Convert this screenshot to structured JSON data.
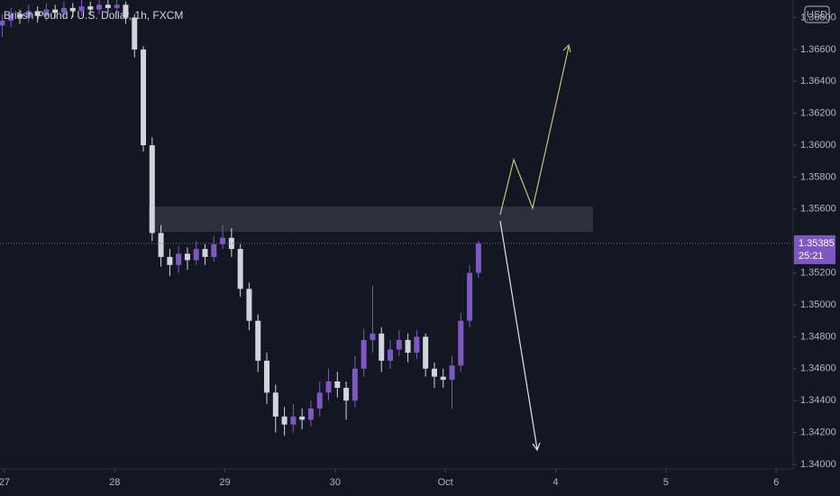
{
  "chart_data": {
    "type": "candlestick",
    "title": "British Pound / U.S. Dollar, 1h, FXCM",
    "currency": "USD",
    "countdown": "25:21",
    "last_price": {
      "value": 1.35385,
      "label": "1.35385"
    },
    "up_color": "#7e57c2",
    "down_color": "#d1d4dc",
    "xlim": [
      -0.04,
      7.2
    ],
    "xticks": [
      {
        "value": 0,
        "label": "27"
      },
      {
        "value": 1,
        "label": "28"
      },
      {
        "value": 2,
        "label": "29"
      },
      {
        "value": 3,
        "label": "30"
      },
      {
        "value": 4,
        "label": "Oct"
      },
      {
        "value": 5,
        "label": "4"
      },
      {
        "value": 6,
        "label": "5"
      },
      {
        "value": 7,
        "label": "6"
      }
    ],
    "ylim": [
      1.34,
      1.3691
    ],
    "yticks": [
      {
        "value": 1.34,
        "label": "1.34000"
      },
      {
        "value": 1.342,
        "label": "1.34200"
      },
      {
        "value": 1.344,
        "label": "1.34400"
      },
      {
        "value": 1.346,
        "label": "1.34600"
      },
      {
        "value": 1.348,
        "label": "1.34800"
      },
      {
        "value": 1.35,
        "label": "1.35000"
      },
      {
        "value": 1.352,
        "label": "1.35200"
      },
      {
        "value": 1.356,
        "label": "1.35600"
      },
      {
        "value": 1.358,
        "label": "1.35800"
      },
      {
        "value": 1.36,
        "label": "1.36000"
      },
      {
        "value": 1.362,
        "label": "1.36200"
      },
      {
        "value": 1.364,
        "label": "1.36400"
      },
      {
        "value": 1.366,
        "label": "1.36600"
      },
      {
        "value": 1.368,
        "label": "1.36800"
      }
    ],
    "x": [
      -0.02,
      0.06,
      0.14,
      0.22,
      0.3,
      0.38,
      0.46,
      0.54,
      0.62,
      0.7,
      0.78,
      0.86,
      0.94,
      1.02,
      1.1,
      1.18,
      1.26,
      1.34,
      1.42,
      1.5,
      1.58,
      1.66,
      1.74,
      1.82,
      1.9,
      1.98,
      2.06,
      2.14,
      2.22,
      2.3,
      2.38,
      2.46,
      2.54,
      2.62,
      2.7,
      2.78,
      2.86,
      2.94,
      3.02,
      3.1,
      3.18,
      3.26,
      3.34,
      3.42,
      3.5,
      3.58,
      3.66,
      3.74,
      3.82,
      3.9,
      3.98,
      4.06,
      4.14,
      4.22,
      4.3
    ],
    "candles": [
      [
        1.3675,
        1.3682,
        1.3668,
        1.3678
      ],
      [
        1.3678,
        1.3686,
        1.3674,
        1.3682
      ],
      [
        1.3682,
        1.3685,
        1.3676,
        1.368
      ],
      [
        1.368,
        1.3688,
        1.3677,
        1.3684
      ],
      [
        1.3684,
        1.3687,
        1.3677,
        1.3681
      ],
      [
        1.3681,
        1.3689,
        1.3678,
        1.3685
      ],
      [
        1.3685,
        1.3688,
        1.368,
        1.3683
      ],
      [
        1.3683,
        1.369,
        1.368,
        1.3686
      ],
      [
        1.3686,
        1.3689,
        1.368,
        1.3684
      ],
      [
        1.3684,
        1.3691,
        1.3681,
        1.3687
      ],
      [
        1.3687,
        1.369,
        1.3682,
        1.3685
      ],
      [
        1.3685,
        1.3692,
        1.3682,
        1.3688
      ],
      [
        1.3688,
        1.3691,
        1.3683,
        1.3686
      ],
      [
        1.3686,
        1.3692,
        1.3683,
        1.3688
      ],
      [
        1.3688,
        1.369,
        1.3676,
        1.368
      ],
      [
        1.368,
        1.3682,
        1.3655,
        1.366
      ],
      [
        1.366,
        1.3662,
        1.3596,
        1.36
      ],
      [
        1.36,
        1.3605,
        1.354,
        1.3545
      ],
      [
        1.3545,
        1.355,
        1.3524,
        1.353
      ],
      [
        1.353,
        1.3535,
        1.3518,
        1.3525
      ],
      [
        1.3525,
        1.3537,
        1.352,
        1.3532
      ],
      [
        1.3532,
        1.3536,
        1.3522,
        1.3528
      ],
      [
        1.3528,
        1.354,
        1.3525,
        1.3535
      ],
      [
        1.3535,
        1.3538,
        1.3525,
        1.353
      ],
      [
        1.353,
        1.3543,
        1.3527,
        1.3538
      ],
      [
        1.3538,
        1.355,
        1.3535,
        1.3542
      ],
      [
        1.3542,
        1.3548,
        1.353,
        1.3535
      ],
      [
        1.3535,
        1.3538,
        1.3505,
        1.351
      ],
      [
        1.351,
        1.3514,
        1.3484,
        1.349
      ],
      [
        1.349,
        1.3494,
        1.3458,
        1.3465
      ],
      [
        1.3465,
        1.347,
        1.3438,
        1.3445
      ],
      [
        1.3445,
        1.345,
        1.342,
        1.343
      ],
      [
        1.343,
        1.3436,
        1.3418,
        1.3425
      ],
      [
        1.3425,
        1.3438,
        1.342,
        1.343
      ],
      [
        1.343,
        1.3435,
        1.3422,
        1.3428
      ],
      [
        1.3428,
        1.344,
        1.3424,
        1.3435
      ],
      [
        1.3435,
        1.3452,
        1.343,
        1.3445
      ],
      [
        1.3445,
        1.346,
        1.344,
        1.3452
      ],
      [
        1.3452,
        1.3458,
        1.3442,
        1.3448
      ],
      [
        1.3448,
        1.3452,
        1.3428,
        1.344
      ],
      [
        1.344,
        1.3468,
        1.3436,
        1.346
      ],
      [
        1.346,
        1.3485,
        1.3455,
        1.3478
      ],
      [
        1.3478,
        1.3512,
        1.347,
        1.3482
      ],
      [
        1.3482,
        1.3486,
        1.3458,
        1.3465
      ],
      [
        1.3465,
        1.3478,
        1.346,
        1.3472
      ],
      [
        1.3472,
        1.3484,
        1.3468,
        1.3478
      ],
      [
        1.3478,
        1.3482,
        1.3464,
        1.347
      ],
      [
        1.347,
        1.3484,
        1.3466,
        1.348
      ],
      [
        1.348,
        1.3482,
        1.3455,
        1.346
      ],
      [
        1.346,
        1.3464,
        1.3448,
        1.3455
      ],
      [
        1.3455,
        1.346,
        1.3448,
        1.3453
      ],
      [
        1.3453,
        1.3468,
        1.3435,
        1.3462
      ],
      [
        1.3462,
        1.3495,
        1.3458,
        1.349
      ],
      [
        1.349,
        1.3525,
        1.3486,
        1.352
      ],
      [
        1.352,
        1.354,
        1.3517,
        1.35385
      ]
    ]
  }
}
